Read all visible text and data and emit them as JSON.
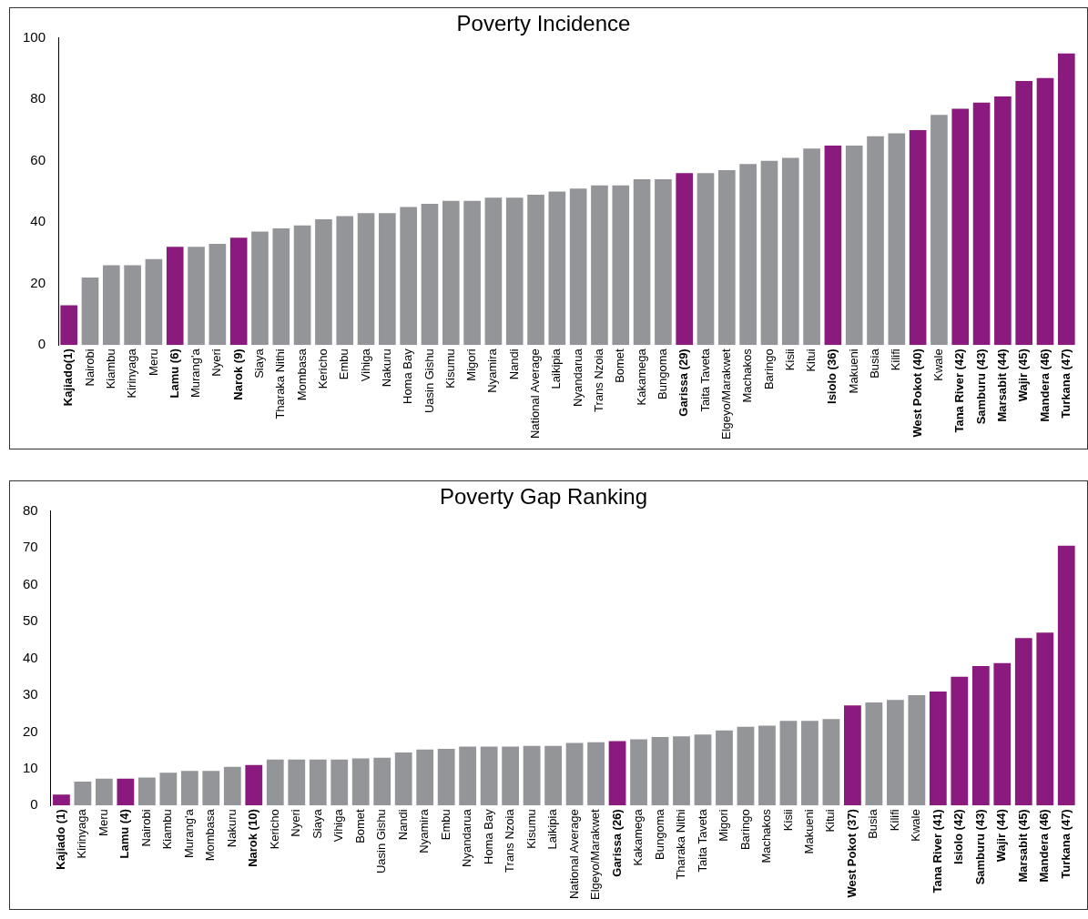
{
  "chart_data": [
    {
      "type": "bar",
      "title": "Poverty Incidence",
      "categories": [
        "Kajiado(1)",
        "Nairobi",
        "Kiambu",
        "Kirinyaga",
        "Meru",
        "Lamu (6)",
        "Murang'a",
        "Nyeri",
        "Narok (9)",
        "Siaya",
        "Tharaka Nithi",
        "Mombasa",
        "Kericho",
        "Embu",
        "Vihiga",
        "Nakuru",
        "Homa Bay",
        "Uasin Gishu",
        "Kisumu",
        "Migori",
        "Nyamira",
        "Nandi",
        "National Average",
        "Laikipia",
        "Nyandarua",
        "Trans Nzoia",
        "Bomet",
        "Kakamega",
        "Bungoma",
        "Garissa (29)",
        "Taita Taveta",
        "Elgeyo/Marakwet",
        "Machakos",
        "Baringo",
        "Kisii",
        "Kitui",
        "Isiolo (36)",
        "Makueni",
        "Busia",
        "Kilifi",
        "West Pokot (40)",
        "Kwale",
        "Tana River (42)",
        "Samburu (43)",
        "Marsabit (44)",
        "Wajir (45)",
        "Mandera (46)",
        "Turkana (47)"
      ],
      "values": [
        13,
        22,
        26,
        26,
        28,
        32,
        32,
        33,
        35,
        37,
        38,
        39,
        41,
        42,
        43,
        43,
        45,
        46,
        47,
        47,
        48,
        48,
        49,
        50,
        51,
        52,
        52,
        54,
        54,
        56,
        56,
        57,
        59,
        60,
        61,
        64,
        65,
        65,
        68,
        69,
        70,
        75,
        77,
        79,
        81,
        86,
        87,
        95
      ],
      "colors": [
        "#8b1a7e",
        "#939598",
        "#939598",
        "#939598",
        "#939598",
        "#8b1a7e",
        "#939598",
        "#939598",
        "#8b1a7e",
        "#939598",
        "#939598",
        "#939598",
        "#939598",
        "#939598",
        "#939598",
        "#939598",
        "#939598",
        "#939598",
        "#939598",
        "#939598",
        "#939598",
        "#939598",
        "#939598",
        "#939598",
        "#939598",
        "#939598",
        "#939598",
        "#939598",
        "#939598",
        "#8b1a7e",
        "#939598",
        "#939598",
        "#939598",
        "#939598",
        "#939598",
        "#939598",
        "#8b1a7e",
        "#939598",
        "#939598",
        "#939598",
        "#8b1a7e",
        "#939598",
        "#8b1a7e",
        "#8b1a7e",
        "#8b1a7e",
        "#8b1a7e",
        "#8b1a7e",
        "#8b1a7e"
      ],
      "ylim": [
        0,
        100
      ],
      "yticks": [
        0,
        20,
        40,
        60,
        80,
        100
      ],
      "grid": false,
      "legend": false
    },
    {
      "type": "bar",
      "title": "Poverty Gap Ranking",
      "categories": [
        "Kajiado (1)",
        "Kirinyaga",
        "Meru",
        "Lamu (4)",
        "Nairobi",
        "Kiambu",
        "Murang'a",
        "Mombasa",
        "Nakuru",
        "Narok (10)",
        "Kericho",
        "Nyeri",
        "Siaya",
        "Vihiga",
        "Bomet",
        "Uasin Gishu",
        "Nandi",
        "Nyamira",
        "Embu",
        "Nyandarua",
        "Homa Bay",
        "Trans Nzoia",
        "Kisumu",
        "Laikipia",
        "National Average",
        "Elgeyo/Marakwet",
        "Garissa (26)",
        "Kakamega",
        "Bungoma",
        "Tharaka Nithi",
        "Taita Taveta",
        "Migori",
        "Baringo",
        "Machakos",
        "Kisii",
        "Makueni",
        "Kitui",
        "West Pokot (37)",
        "Busia",
        "Kilifi",
        "Kwale",
        "Tana River (41)",
        "Isiolo (42)",
        "Samburu (43)",
        "Wajir (44)",
        "Marsabit (45)",
        "Mandera (46)",
        "Turkana (47)"
      ],
      "values": [
        3,
        6.5,
        7.3,
        7.3,
        7.6,
        8.9,
        9.4,
        9.4,
        10.5,
        11,
        12.5,
        12.5,
        12.5,
        12.5,
        12.8,
        13,
        14.4,
        15.2,
        15.4,
        16,
        16,
        16,
        16.2,
        16.2,
        17,
        17.2,
        17.5,
        18,
        18.6,
        18.8,
        19.3,
        20.4,
        21.4,
        21.7,
        23,
        23,
        23.5,
        27.2,
        28,
        28.7,
        30,
        31,
        35,
        37.9,
        38.7,
        45.5,
        47,
        70.6
      ],
      "colors": [
        "#8b1a7e",
        "#939598",
        "#939598",
        "#8b1a7e",
        "#939598",
        "#939598",
        "#939598",
        "#939598",
        "#939598",
        "#8b1a7e",
        "#939598",
        "#939598",
        "#939598",
        "#939598",
        "#939598",
        "#939598",
        "#939598",
        "#939598",
        "#939598",
        "#939598",
        "#939598",
        "#939598",
        "#939598",
        "#939598",
        "#939598",
        "#939598",
        "#8b1a7e",
        "#939598",
        "#939598",
        "#939598",
        "#939598",
        "#939598",
        "#939598",
        "#939598",
        "#939598",
        "#939598",
        "#939598",
        "#8b1a7e",
        "#939598",
        "#939598",
        "#939598",
        "#8b1a7e",
        "#8b1a7e",
        "#8b1a7e",
        "#8b1a7e",
        "#8b1a7e",
        "#8b1a7e",
        "#8b1a7e"
      ],
      "ylim": [
        0,
        80
      ],
      "yticks": [
        0,
        10,
        20,
        30,
        40,
        50,
        60,
        70,
        80
      ],
      "grid": false,
      "legend": false
    }
  ]
}
